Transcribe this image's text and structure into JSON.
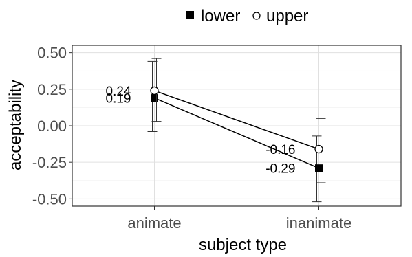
{
  "chart_data": {
    "type": "line",
    "xlabel": "subject type",
    "ylabel": "acceptability",
    "categories": [
      "animate",
      "inanimate"
    ],
    "ylim": [
      -0.55,
      0.55
    ],
    "yticks": [
      -0.5,
      -0.25,
      0.0,
      0.25,
      0.5
    ],
    "ytick_labels": [
      "-0.50",
      "-0.25",
      "0.00",
      "0.25",
      "0.50"
    ],
    "grid": true,
    "legend_position": "top",
    "series": [
      {
        "name": "lower",
        "marker": "filled-square",
        "color": "#000000",
        "values": [
          0.19,
          -0.29
        ],
        "error_low": [
          -0.04,
          -0.52
        ],
        "error_high": [
          0.44,
          -0.07
        ],
        "labels": [
          "0.19",
          "-0.29"
        ]
      },
      {
        "name": "upper",
        "marker": "open-circle",
        "color": "#000000",
        "values": [
          0.24,
          -0.16
        ],
        "error_low": [
          0.03,
          -0.39
        ],
        "error_high": [
          0.46,
          0.05
        ],
        "labels": [
          "0.24",
          "-0.16"
        ]
      }
    ]
  }
}
